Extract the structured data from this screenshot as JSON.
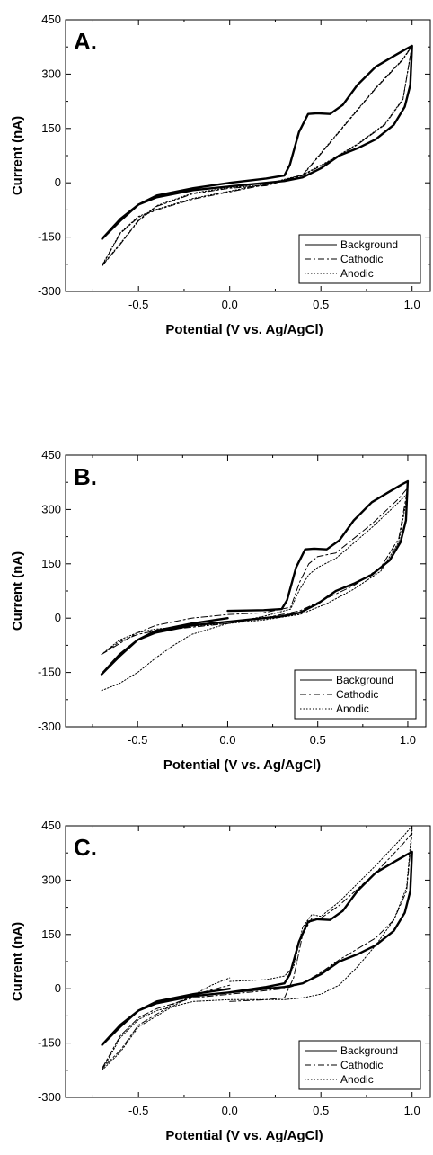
{
  "chart_data": [
    {
      "type": "line",
      "panel_label": "A.",
      "xlabel": "Potential (V vs. Ag/AgCl)",
      "ylabel": "Current (nA)",
      "xlim": [
        -0.9,
        1.1
      ],
      "ylim": [
        -300,
        450
      ],
      "xticks": [
        -0.5,
        0.0,
        0.5,
        1.0
      ],
      "xtick_labels": [
        "-0.5",
        "0.0",
        "0.5",
        "1.0"
      ],
      "yticks": [
        -300,
        -150,
        0,
        150,
        300,
        450
      ],
      "ytick_labels": [
        "-300",
        "-150",
        "0",
        "150",
        "300",
        "450"
      ],
      "legend_position": "bottom-right",
      "grid": false,
      "series": [
        {
          "name": "Background",
          "style": "solid",
          "width": 2.4,
          "x": [
            -0.7,
            -0.6,
            -0.5,
            -0.4,
            -0.2,
            0.0,
            0.2,
            0.3,
            0.33,
            0.38,
            0.43,
            0.48,
            0.55,
            0.62,
            0.7,
            0.8,
            0.9,
            0.97,
            1.0,
            0.99,
            0.96,
            0.9,
            0.8,
            0.7,
            0.6,
            0.5,
            0.4,
            0.3,
            0.1,
            0.0,
            -0.2,
            -0.4,
            -0.5,
            -0.6,
            -0.7
          ],
          "y": [
            -155,
            -105,
            -60,
            -35,
            -15,
            0,
            12,
            20,
            50,
            140,
            190,
            192,
            190,
            215,
            270,
            320,
            350,
            370,
            378,
            270,
            210,
            160,
            120,
            95,
            75,
            40,
            15,
            5,
            -5,
            -10,
            -20,
            -40,
            -60,
            -100,
            -155
          ]
        },
        {
          "name": "Cathodic",
          "style": "dashdot",
          "width": 1,
          "x": [
            -0.7,
            -0.6,
            -0.5,
            -0.4,
            -0.2,
            0.0,
            0.2,
            0.4,
            0.6,
            0.8,
            0.95,
            1.0,
            0.95,
            0.85,
            0.7,
            0.55,
            0.4,
            0.2,
            0.0,
            -0.2,
            -0.4,
            -0.5,
            -0.6,
            -0.7
          ],
          "y": [
            -230,
            -170,
            -105,
            -65,
            -30,
            -15,
            -8,
            20,
            140,
            260,
            340,
            378,
            230,
            160,
            105,
            60,
            20,
            -5,
            -25,
            -45,
            -75,
            -95,
            -140,
            -230
          ]
        },
        {
          "name": "Anodic",
          "style": "dotted",
          "width": 1,
          "x": [
            -0.7,
            -0.6,
            -0.5,
            -0.4,
            -0.2,
            0.0,
            0.2,
            0.4,
            0.6,
            0.8,
            0.95,
            1.0,
            0.95,
            0.85,
            0.7,
            0.55,
            0.4,
            0.2,
            0.0,
            -0.2,
            -0.4,
            -0.5,
            -0.6,
            -0.7
          ],
          "y": [
            -228,
            -168,
            -103,
            -63,
            -28,
            -13,
            -6,
            22,
            142,
            262,
            342,
            380,
            232,
            162,
            107,
            62,
            22,
            -3,
            -23,
            -43,
            -73,
            -93,
            -138,
            -228
          ]
        }
      ]
    },
    {
      "type": "line",
      "panel_label": "B.",
      "xlabel": "Potential (V vs. Ag/AgCl)",
      "ylabel": "Current (nA)",
      "xlim": [
        -0.9,
        1.1
      ],
      "ylim": [
        -300,
        450
      ],
      "xticks": [
        -0.5,
        0.0,
        0.5,
        1.0
      ],
      "xtick_labels": [
        "-0.5",
        "0.0",
        "0.5",
        "1.0"
      ],
      "yticks": [
        -300,
        -150,
        0,
        150,
        300,
        450
      ],
      "ytick_labels": [
        "-300",
        "-150",
        "0",
        "150",
        "300",
        "450"
      ],
      "legend_position": "bottom-right",
      "grid": false,
      "series": [
        {
          "name": "Background",
          "style": "solid",
          "width": 2.4,
          "x": [
            0.0,
            0.2,
            0.3,
            0.33,
            0.38,
            0.43,
            0.48,
            0.55,
            0.62,
            0.7,
            0.8,
            0.9,
            0.97,
            1.0,
            0.99,
            0.96,
            0.9,
            0.8,
            0.7,
            0.6,
            0.5,
            0.4,
            0.3,
            0.1,
            0.0,
            -0.2,
            -0.4,
            -0.5,
            -0.6,
            -0.7,
            -0.6,
            -0.5,
            -0.4,
            -0.2,
            0.0
          ],
          "y": [
            20,
            22,
            25,
            50,
            140,
            190,
            192,
            190,
            215,
            270,
            320,
            350,
            370,
            378,
            270,
            210,
            160,
            120,
            95,
            75,
            40,
            15,
            5,
            -5,
            -10,
            -20,
            -40,
            -60,
            -100,
            -155,
            -105,
            -60,
            -35,
            -15,
            0
          ]
        },
        {
          "name": "Cathodic",
          "style": "dashdot",
          "width": 1,
          "x": [
            -0.7,
            -0.6,
            -0.5,
            -0.4,
            -0.2,
            0.0,
            0.2,
            0.35,
            0.4,
            0.45,
            0.5,
            0.6,
            0.8,
            0.95,
            1.0,
            0.95,
            0.85,
            0.7,
            0.55,
            0.4,
            0.2,
            0.0,
            -0.2,
            -0.4,
            -0.5,
            -0.6,
            -0.7
          ],
          "y": [
            -100,
            -70,
            -40,
            -20,
            0,
            10,
            15,
            30,
            100,
            150,
            170,
            180,
            260,
            330,
            360,
            220,
            140,
            90,
            55,
            20,
            0,
            -15,
            -25,
            -35,
            -45,
            -65,
            -100
          ]
        },
        {
          "name": "Anodic",
          "style": "dotted",
          "width": 1,
          "x": [
            -0.7,
            -0.6,
            -0.5,
            -0.4,
            -0.3,
            -0.2,
            0.0,
            0.2,
            0.35,
            0.4,
            0.45,
            0.5,
            0.6,
            0.8,
            0.95,
            1.0,
            0.95,
            0.85,
            0.7,
            0.55,
            0.4,
            0.2,
            0.0,
            -0.2,
            -0.4,
            -0.5,
            -0.6,
            -0.7
          ],
          "y": [
            -200,
            -180,
            -150,
            -110,
            -75,
            -45,
            -15,
            5,
            25,
            80,
            120,
            140,
            165,
            250,
            320,
            345,
            210,
            130,
            80,
            40,
            10,
            -5,
            -15,
            -22,
            -30,
            -40,
            -60,
            -100
          ]
        }
      ]
    },
    {
      "type": "line",
      "panel_label": "C.",
      "xlabel": "Potential (V vs. Ag/AgCl)",
      "ylabel": "Current (nA)",
      "xlim": [
        -0.9,
        1.1
      ],
      "ylim": [
        -300,
        450
      ],
      "xticks": [
        -0.5,
        0.0,
        0.5,
        1.0
      ],
      "xtick_labels": [
        "-0.5",
        "0.0",
        "0.5",
        "1.0"
      ],
      "yticks": [
        -300,
        -150,
        0,
        150,
        300,
        450
      ],
      "ytick_labels": [
        "-300",
        "-150",
        "0",
        "150",
        "300",
        "450"
      ],
      "legend_position": "bottom-right",
      "grid": false,
      "series": [
        {
          "name": "Background",
          "style": "solid",
          "width": 2.4,
          "x": [
            0.0,
            0.2,
            0.3,
            0.33,
            0.38,
            0.43,
            0.48,
            0.55,
            0.62,
            0.7,
            0.8,
            0.9,
            0.97,
            1.0,
            0.99,
            0.96,
            0.9,
            0.8,
            0.7,
            0.6,
            0.5,
            0.4,
            0.3,
            0.1,
            0.0,
            -0.2,
            -0.4,
            -0.5,
            -0.6,
            -0.7,
            -0.6,
            -0.5,
            -0.4,
            -0.2,
            0.0
          ],
          "y": [
            -10,
            5,
            15,
            40,
            130,
            185,
            192,
            190,
            215,
            270,
            320,
            350,
            370,
            378,
            270,
            210,
            160,
            120,
            95,
            75,
            40,
            15,
            5,
            -5,
            -10,
            -20,
            -40,
            -60,
            -100,
            -155,
            -105,
            -60,
            -35,
            -15,
            0
          ]
        },
        {
          "name": "Cathodic",
          "style": "dashdot",
          "width": 1,
          "x": [
            0.0,
            0.2,
            0.3,
            0.35,
            0.4,
            0.45,
            0.5,
            0.6,
            0.8,
            0.95,
            1.0,
            0.97,
            0.9,
            0.8,
            0.7,
            0.6,
            0.5,
            0.4,
            0.3,
            0.1,
            0.0,
            -0.2,
            -0.4,
            -0.5,
            -0.6,
            -0.7,
            -0.6,
            -0.5,
            -0.3,
            -0.15,
            0.0
          ],
          "y": [
            -35,
            -30,
            -25,
            30,
            150,
            195,
            195,
            230,
            320,
            400,
            430,
            270,
            190,
            140,
            110,
            80,
            45,
            15,
            0,
            -10,
            -15,
            -25,
            -55,
            -80,
            -130,
            -220,
            -170,
            -100,
            -40,
            -10,
            10
          ]
        },
        {
          "name": "Anodic",
          "style": "dotted",
          "width": 1,
          "x": [
            0.0,
            0.2,
            0.3,
            0.35,
            0.4,
            0.45,
            0.5,
            0.6,
            0.8,
            0.95,
            1.0,
            0.97,
            0.9,
            0.8,
            0.7,
            0.6,
            0.5,
            0.4,
            0.3,
            0.1,
            0.0,
            -0.2,
            -0.4,
            -0.5,
            -0.6,
            -0.7,
            -0.6,
            -0.5,
            -0.3,
            -0.1,
            0.0
          ],
          "y": [
            20,
            25,
            35,
            60,
            170,
            205,
            200,
            240,
            340,
            420,
            450,
            280,
            190,
            120,
            60,
            10,
            -15,
            -25,
            -30,
            -30,
            -30,
            -35,
            -60,
            -85,
            -135,
            -225,
            -175,
            -105,
            -45,
            10,
            30
          ]
        }
      ]
    }
  ]
}
